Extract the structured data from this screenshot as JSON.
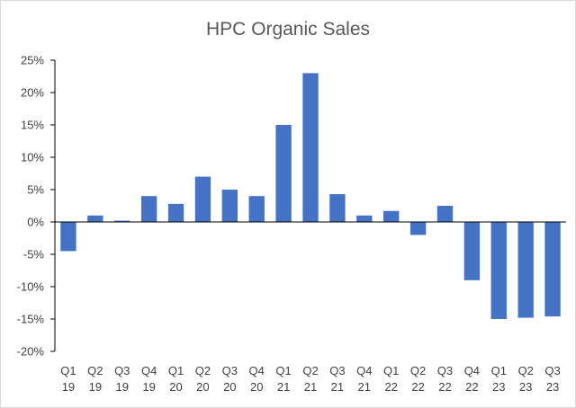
{
  "chart_data": {
    "type": "bar",
    "title": "HPC Organic Sales",
    "xlabel": "",
    "ylabel": "",
    "categories": [
      [
        "Q1",
        "19"
      ],
      [
        "Q2",
        "19"
      ],
      [
        "Q3",
        "19"
      ],
      [
        "Q4",
        "19"
      ],
      [
        "Q1",
        "20"
      ],
      [
        "Q2",
        "20"
      ],
      [
        "Q3",
        "20"
      ],
      [
        "Q4",
        "20"
      ],
      [
        "Q1",
        "21"
      ],
      [
        "Q2",
        "21"
      ],
      [
        "Q3",
        "21"
      ],
      [
        "Q4",
        "21"
      ],
      [
        "Q1",
        "22"
      ],
      [
        "Q2",
        "22"
      ],
      [
        "Q3",
        "22"
      ],
      [
        "Q4",
        "22"
      ],
      [
        "Q1",
        "23"
      ],
      [
        "Q2",
        "23"
      ],
      [
        "Q3",
        "23"
      ]
    ],
    "values": [
      -4.5,
      1.0,
      0.2,
      4.0,
      2.8,
      7.0,
      5.0,
      4.0,
      15.0,
      23.0,
      4.3,
      1.0,
      1.7,
      -2.0,
      2.5,
      -9.0,
      -15.0,
      -14.8,
      -14.6
    ],
    "ylim": [
      -20,
      25
    ],
    "yticks": [
      25,
      20,
      15,
      10,
      5,
      0,
      -5,
      -10,
      -15,
      -20
    ],
    "ytick_format": "%",
    "grid": false,
    "bar_color": "#4472c4",
    "axis_color": "#000000"
  }
}
